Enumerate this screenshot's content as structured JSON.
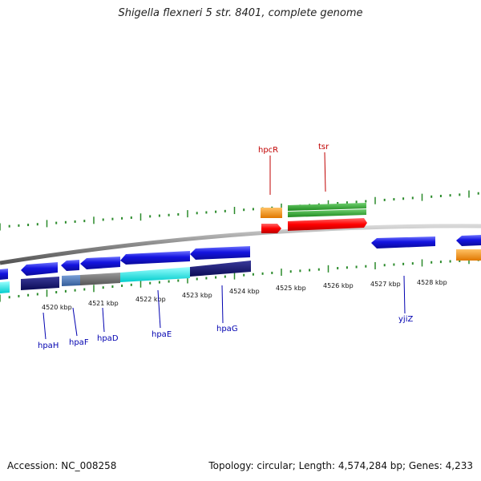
{
  "title": "Shigella flexneri 5 str. 8401, complete genome",
  "footer": {
    "accession": "Accession: NC_008258",
    "summary": "Topology: circular; Length: 4,574,284 bp; Genes: 4,233"
  },
  "colors": {
    "backbone": "#8c8c8c",
    "tick": "#2a8a2a",
    "label_red": "#c00000",
    "label_blue": "#0000b0"
  },
  "axis_labels": [
    "4520 kbp",
    "4521 kbp",
    "4522 kbp",
    "4523 kbp",
    "4524 kbp",
    "4525 kbp",
    "4526 kbp",
    "4527 kbp",
    "4528 kbp"
  ],
  "gene_labels_forward": [
    "hpcR",
    "tsr"
  ],
  "gene_labels_reverse": [
    "hpaH",
    "hpaF",
    "hpaD",
    "hpaE",
    "hpaG",
    "yjiZ"
  ]
}
